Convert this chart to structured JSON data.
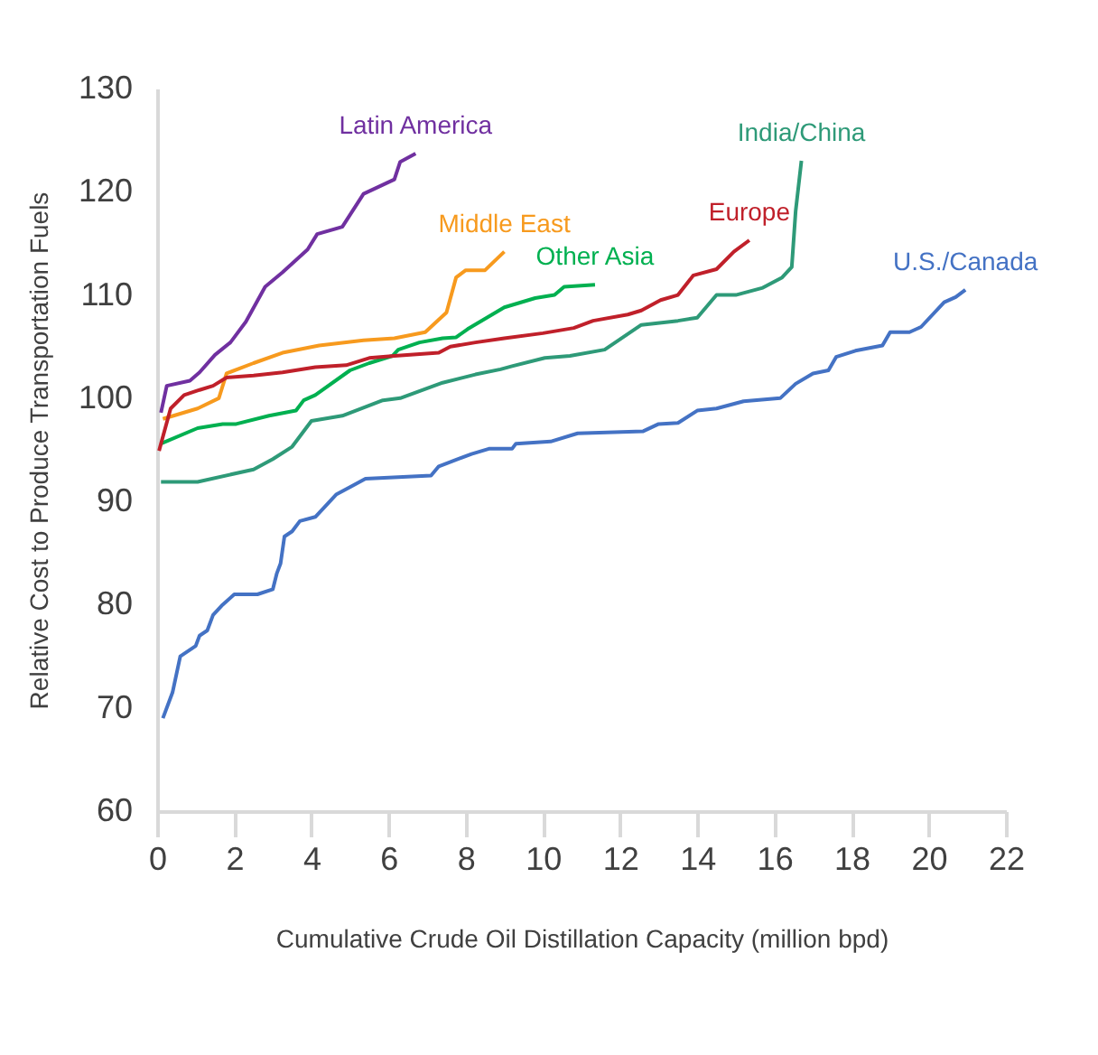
{
  "chart_data": {
    "type": "line",
    "xlabel": "Cumulative Crude Oil Distillation Capacity (million bpd)",
    "ylabel": "Relative Cost to Produce Transportation Fuels",
    "xlim": [
      0,
      22
    ],
    "xticks": [
      0,
      2,
      4,
      6,
      8,
      10,
      12,
      14,
      16,
      18,
      20,
      22
    ],
    "ylim": [
      60,
      130
    ],
    "yticks": [
      60,
      70,
      80,
      90,
      100,
      110,
      120,
      130
    ],
    "series": [
      {
        "name": "Latin America",
        "color": "#7030a0",
        "x": [
          0.1,
          0.25,
          0.85,
          1.1,
          1.5,
          1.9,
          2.3,
          2.8,
          3.25,
          3.9,
          4.15,
          4.8,
          5.35,
          6.15,
          6.3,
          6.7
        ],
        "values": [
          98.6,
          101.2,
          101.7,
          102.5,
          104.2,
          105.4,
          107.4,
          110.8,
          112.2,
          114.4,
          115.9,
          116.6,
          119.8,
          121.2,
          122.9,
          123.7
        ]
      },
      {
        "name": "Middle East",
        "color": "#f79a1e",
        "x": [
          0.15,
          1.05,
          1.6,
          1.8,
          2.5,
          3.25,
          4.2,
          5.35,
          6.15,
          6.95,
          7.5,
          7.75,
          8.0,
          8.5,
          9.0
        ],
        "values": [
          98,
          99,
          100,
          102.4,
          103.4,
          104.4,
          105.1,
          105.6,
          105.8,
          106.4,
          108.3,
          111.7,
          112.4,
          112.4,
          114.2
        ]
      },
      {
        "name": "Other Asia",
        "color": "#00b050",
        "x": [
          0.1,
          1.05,
          1.7,
          2.05,
          2.9,
          3.6,
          3.8,
          4.1,
          5.0,
          5.5,
          6.1,
          6.25,
          6.8,
          7.4,
          7.75,
          8.05,
          9.0,
          9.8,
          10.3,
          10.55,
          11.35
        ],
        "values": [
          95.6,
          97.1,
          97.5,
          97.5,
          98.3,
          98.8,
          99.8,
          100.3,
          102.7,
          103.4,
          104.1,
          104.7,
          105.4,
          105.8,
          105.9,
          106.7,
          108.8,
          109.7,
          110,
          110.8,
          111
        ]
      },
      {
        "name": "Europe",
        "color": "#c0202a",
        "x": [
          0.05,
          0.35,
          0.7,
          1.1,
          1.45,
          1.8,
          2.5,
          3.25,
          4.1,
          4.9,
          5.5,
          6.15,
          7.3,
          7.6,
          8.25,
          9.0,
          10.0,
          10.8,
          11.3,
          12.2,
          12.55,
          13.05,
          13.5,
          13.9,
          14.5,
          14.95,
          15.35
        ],
        "values": [
          94.9,
          99,
          100.3,
          100.8,
          101.2,
          102,
          102.2,
          102.5,
          103,
          103.2,
          103.9,
          104.1,
          104.4,
          105,
          105.4,
          105.8,
          106.3,
          106.8,
          107.5,
          108.1,
          108.5,
          109.5,
          110,
          111.9,
          112.5,
          114.2,
          115.3
        ]
      },
      {
        "name": "India/China",
        "color": "#2e9a78",
        "x": [
          0.1,
          1.05,
          2.5,
          3.0,
          3.5,
          4.0,
          4.8,
          5.85,
          6.3,
          7.4,
          8.25,
          8.9,
          9.2,
          10.05,
          10.7,
          11.6,
          12.55,
          13.5,
          14.0,
          14.5,
          15.0,
          15.7,
          16.2,
          16.45,
          16.55,
          16.7
        ],
        "values": [
          91.9,
          91.9,
          93.1,
          94.1,
          95.3,
          97.8,
          98.3,
          99.8,
          100,
          101.5,
          102.3,
          102.8,
          103.1,
          103.9,
          104.1,
          104.7,
          107.1,
          107.5,
          107.8,
          110,
          110,
          110.7,
          111.7,
          112.7,
          118.1,
          123
        ]
      },
      {
        "name": "U.S./Canada",
        "color": "#4472c4",
        "x": [
          0.15,
          0.4,
          0.6,
          1.0,
          1.1,
          1.3,
          1.45,
          1.7,
          2.0,
          2.6,
          3.0,
          3.1,
          3.2,
          3.3,
          3.5,
          3.7,
          4.1,
          4.4,
          4.65,
          5.0,
          5.4,
          7.1,
          7.3,
          8.15,
          8.6,
          9.2,
          9.3,
          10.2,
          10.9,
          12.6,
          13.0,
          13.5,
          14.0,
          14.5,
          15.2,
          16.15,
          16.55,
          17.0,
          17.4,
          17.6,
          18.1,
          18.8,
          19.0,
          19.5,
          19.8,
          20.4,
          20.7,
          20.95
        ],
        "values": [
          69,
          71.5,
          75,
          76,
          77,
          77.5,
          79,
          80,
          81,
          81,
          81.5,
          83,
          84,
          86.6,
          87.1,
          88.1,
          88.5,
          89.7,
          90.7,
          91.4,
          92.2,
          92.5,
          93.4,
          94.6,
          95.1,
          95.1,
          95.6,
          95.8,
          96.6,
          96.8,
          97.5,
          97.6,
          98.8,
          99,
          99.7,
          100,
          101.4,
          102.4,
          102.7,
          104,
          104.6,
          105.1,
          106.4,
          106.4,
          106.9,
          109.3,
          109.8,
          110.5
        ]
      }
    ]
  }
}
